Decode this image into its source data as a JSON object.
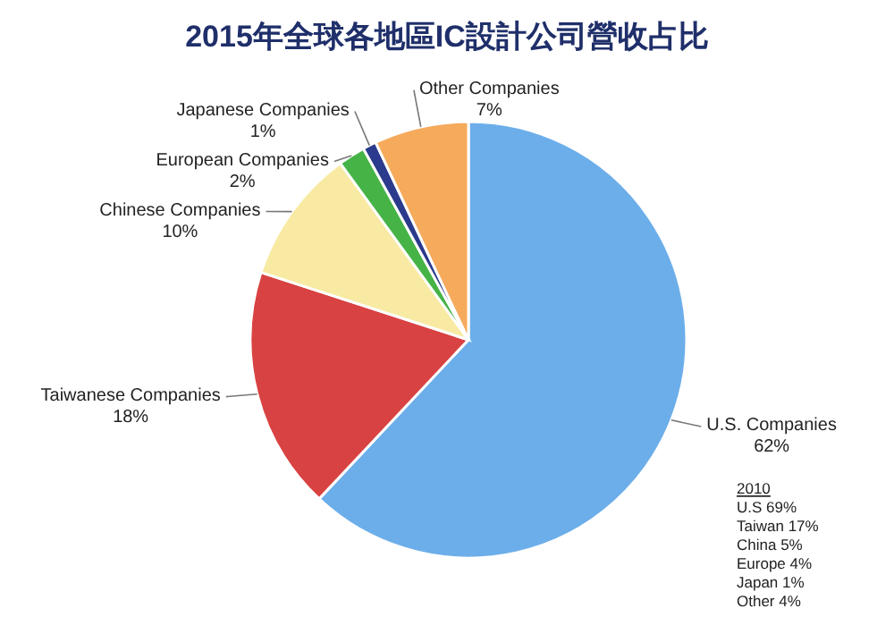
{
  "chart_data": {
    "type": "pie",
    "title": "2015年全球各地區IC設計公司營收占比",
    "categories": [
      "U.S. Companies",
      "Taiwanese Companies",
      "Chinese Companies",
      "European Companies",
      "Japanese Companies",
      "Other Companies"
    ],
    "values": [
      62,
      18,
      10,
      2,
      1,
      7
    ],
    "value_labels": [
      "62%",
      "18%",
      "10%",
      "2%",
      "1%",
      "7%"
    ],
    "colors": [
      "#6caeea",
      "#d94242",
      "#f8eaa2",
      "#46b346",
      "#2b3a8c",
      "#f5aa5c"
    ],
    "annotations": [
      "2010",
      "U.S 69%",
      "Taiwan 17%",
      "China 5%",
      "Europe 4%",
      "Japan 1%",
      "Other 4%"
    ]
  }
}
